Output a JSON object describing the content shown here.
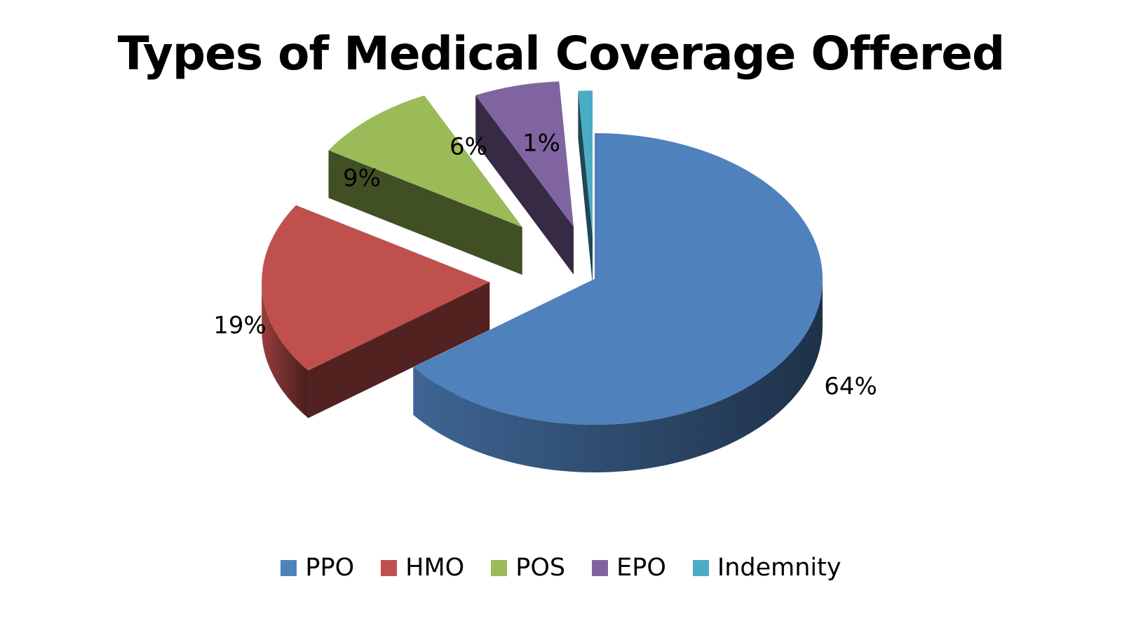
{
  "chart_data": {
    "type": "pie",
    "title": "Types of Medical Coverage Offered",
    "categories": [
      "PPO",
      "HMO",
      "POS",
      "EPO",
      "Indemnity"
    ],
    "values": [
      64,
      19,
      9,
      6,
      1
    ],
    "data_labels": [
      "64%",
      "19%",
      "9%",
      "6%",
      "1%"
    ],
    "colors": [
      "#4F81BD",
      "#C0504D",
      "#9BBB59",
      "#8064A2",
      "#4BACC6"
    ],
    "legend_position": "bottom",
    "style": "3d-exploded"
  }
}
